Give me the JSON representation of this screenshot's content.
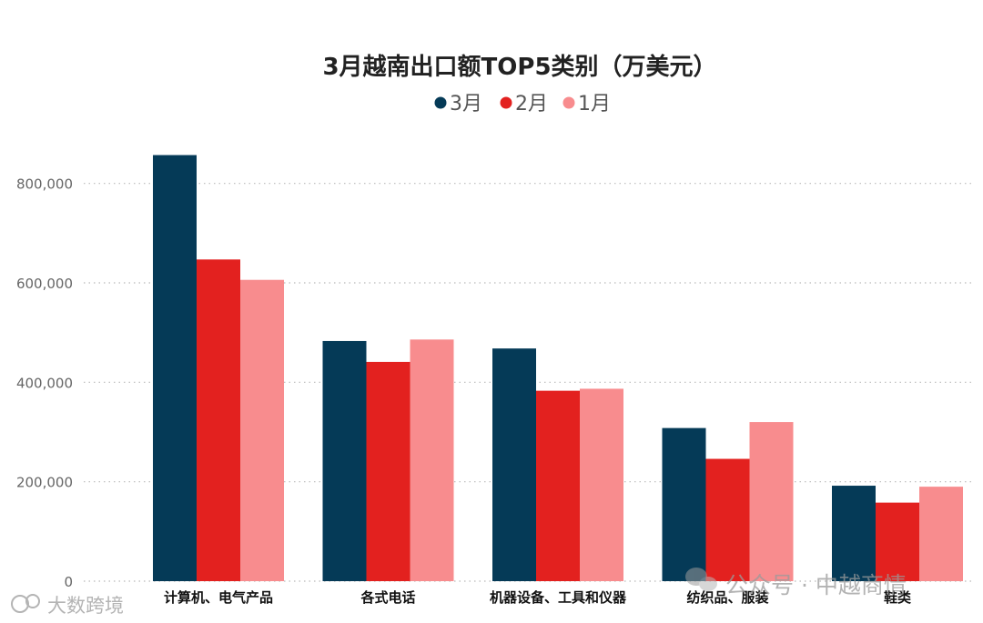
{
  "chart_data": {
    "type": "bar",
    "title": "3月越南出口额TOP5类别（万美元）",
    "categories": [
      "计算机、电气产品",
      "各式电话",
      "机器设备、工具和仪器",
      "纺织品、服装",
      "鞋类"
    ],
    "series": [
      {
        "name": "3月",
        "color": "#053a57",
        "values": [
          857000,
          483000,
          468000,
          308000,
          192000
        ]
      },
      {
        "name": "2月",
        "color": "#e3211f",
        "values": [
          647000,
          441000,
          383000,
          246000,
          158000
        ]
      },
      {
        "name": "1月",
        "color": "#f88c8e",
        "values": [
          606000,
          486000,
          387000,
          320000,
          190000
        ]
      }
    ],
    "ylim": [
      0,
      900000
    ],
    "yticks": [
      0,
      200000,
      400000,
      600000,
      800000
    ],
    "ytick_labels": [
      "0",
      "200,000",
      "400,000",
      "600,000",
      "800,000"
    ],
    "xlabel": "",
    "ylabel": "",
    "legend_position": "top-center",
    "grid": "horizontal-dotted"
  },
  "watermark": {
    "text": "公众号 · 中越商情",
    "icon": "wechat-icon"
  },
  "source_logo": {
    "text": "大数跨境"
  }
}
